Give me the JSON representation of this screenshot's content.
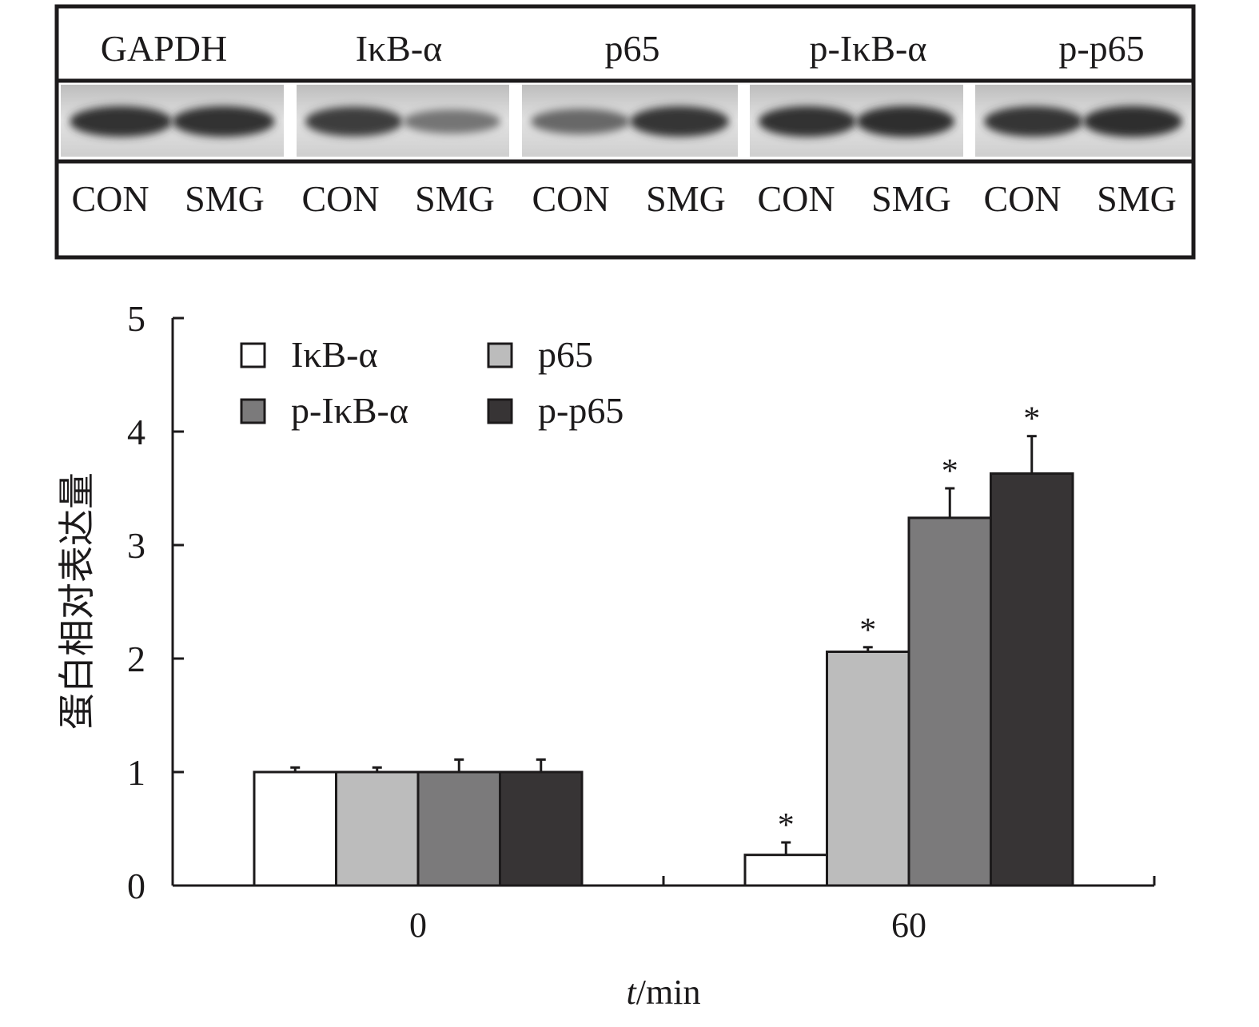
{
  "blot": {
    "proteins": [
      "GAPDH",
      "IκB-α",
      "p65",
      "p-IκB-α",
      "p-p65"
    ],
    "lanes": [
      "CON",
      "SMG",
      "CON",
      "SMG",
      "CON",
      "SMG",
      "CON",
      "SMG",
      "CON",
      "SMG"
    ],
    "band_intensity": [
      [
        0.92,
        0.92
      ],
      [
        0.85,
        0.45
      ],
      [
        0.55,
        0.9
      ],
      [
        0.92,
        0.95
      ],
      [
        0.9,
        0.95
      ]
    ]
  },
  "chart_data": {
    "type": "bar",
    "categories": [
      "0",
      "60"
    ],
    "series": [
      {
        "name": "IκB-α",
        "color": "#ffffff",
        "values": [
          1.0,
          0.27
        ],
        "errors": [
          0.04,
          0.11
        ],
        "significant": [
          false,
          true
        ]
      },
      {
        "name": "p65",
        "color": "#bcbcbc",
        "values": [
          1.0,
          2.06
        ],
        "errors": [
          0.04,
          0.04
        ],
        "significant": [
          false,
          true
        ]
      },
      {
        "name": "p-IκB-α",
        "color": "#7b7a7b",
        "values": [
          1.0,
          3.24
        ],
        "errors": [
          0.11,
          0.26
        ],
        "significant": [
          false,
          true
        ]
      },
      {
        "name": "p-p65",
        "color": "#373435",
        "values": [
          1.0,
          3.63
        ],
        "errors": [
          0.11,
          0.33
        ],
        "significant": [
          false,
          true
        ]
      }
    ],
    "significance_marker": "*",
    "xlabel_italic": "t",
    "xlabel_rest": "/min",
    "ylabel": "蛋白相对表达量",
    "yticks": [
      "0",
      "1",
      "2",
      "3",
      "4",
      "5"
    ],
    "ylim": [
      0,
      5
    ],
    "legend_position": "top-left"
  }
}
